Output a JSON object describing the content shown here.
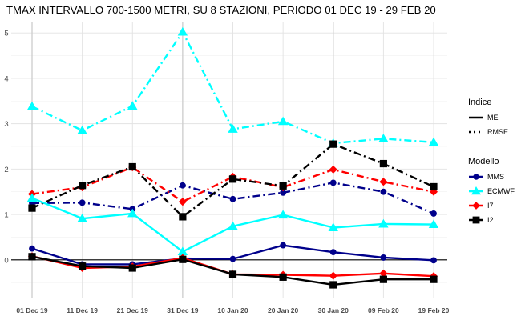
{
  "chart_data": {
    "type": "line",
    "title": "TMAX INTERVALLO 700-1500 METRI, SU 8 STAZIONI, PERIODO 01 DEC 19  -  29 FEB 20",
    "xlabel": "",
    "ylabel": "",
    "categories": [
      "01 Dec 19",
      "11 Dec 19",
      "21 Dec 19",
      "31 Dec 19",
      "10 Jan 20",
      "20 Jan 20",
      "30 Jan 20",
      "09 Feb 20",
      "19 Feb 20"
    ],
    "ylim": [
      -0.85,
      5.25
    ],
    "yticks": [
      0,
      1,
      2,
      3,
      4,
      5
    ],
    "grid": true,
    "zero_line": true,
    "legend_position": "right",
    "legends": [
      {
        "title": "Indice",
        "items": [
          {
            "label": "ME",
            "line": "solid"
          },
          {
            "label": "RMSE",
            "line": "dotdash"
          }
        ]
      },
      {
        "title": "Modello",
        "items": [
          {
            "label": "MMS",
            "color": "#00008b",
            "marker": "circle"
          },
          {
            "label": "ECMWF",
            "color": "#00ffff",
            "marker": "triangle"
          },
          {
            "label": "I7",
            "color": "#ff0000",
            "marker": "diamond"
          },
          {
            "label": "I2",
            "color": "#000000",
            "marker": "square"
          }
        ]
      }
    ],
    "series": [
      {
        "modello": "ECMWF",
        "indice": "RMSE",
        "color": "#00ffff",
        "marker": "triangle",
        "values": [
          3.38,
          2.85,
          3.39,
          5.02,
          2.88,
          3.05,
          2.57,
          2.67,
          2.59
        ]
      },
      {
        "modello": "MMS",
        "indice": "RMSE",
        "color": "#00008b",
        "marker": "circle",
        "values": [
          1.25,
          1.26,
          1.12,
          1.64,
          1.34,
          1.48,
          1.7,
          1.5,
          1.02
        ]
      },
      {
        "modello": "I7",
        "indice": "RMSE",
        "color": "#ff0000",
        "marker": "diamond",
        "values": [
          1.45,
          1.6,
          2.04,
          1.28,
          1.83,
          1.6,
          1.99,
          1.72,
          1.5
        ]
      },
      {
        "modello": "I2",
        "indice": "RMSE",
        "color": "#000000",
        "marker": "square",
        "values": [
          1.14,
          1.64,
          2.05,
          0.95,
          1.78,
          1.63,
          2.55,
          2.12,
          1.61
        ]
      },
      {
        "modello": "ECMWF",
        "indice": "ME",
        "color": "#00ffff",
        "marker": "triangle",
        "values": [
          1.36,
          0.91,
          1.02,
          0.18,
          0.74,
          0.99,
          0.71,
          0.79,
          0.78
        ]
      },
      {
        "modello": "MMS",
        "indice": "ME",
        "color": "#00008b",
        "marker": "circle",
        "values": [
          0.25,
          -0.1,
          -0.1,
          0.03,
          0.02,
          0.32,
          0.17,
          0.05,
          -0.01
        ]
      },
      {
        "modello": "I7",
        "indice": "ME",
        "color": "#ff0000",
        "marker": "diamond",
        "values": [
          0.08,
          -0.18,
          -0.15,
          0.04,
          -0.32,
          -0.33,
          -0.35,
          -0.3,
          -0.36
        ]
      },
      {
        "modello": "I2",
        "indice": "ME",
        "color": "#000000",
        "marker": "square",
        "values": [
          0.07,
          -0.14,
          -0.18,
          0.01,
          -0.32,
          -0.38,
          -0.55,
          -0.43,
          -0.43
        ]
      }
    ]
  }
}
